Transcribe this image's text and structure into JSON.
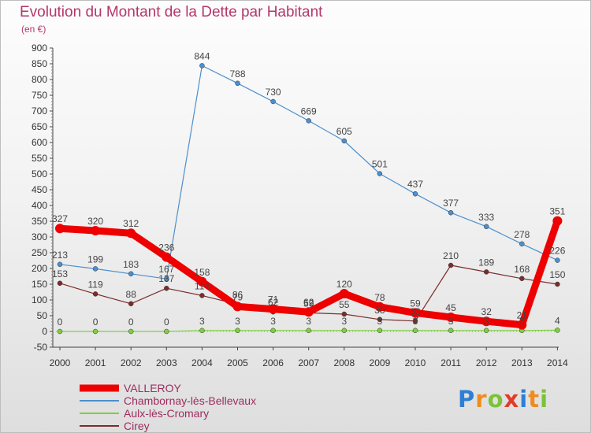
{
  "header": {
    "title": "Evolution du Montant de la Dette par Habitant",
    "subtitle": "(en €)"
  },
  "chart_data": {
    "type": "line",
    "title": "Evolution du Montant de la Dette par Habitant",
    "ylabel": "(en €)",
    "xlabel": "",
    "x": [
      "2000",
      "2001",
      "2002",
      "2003",
      "2004",
      "2005",
      "2006",
      "2007",
      "2008",
      "2009",
      "2010",
      "2011",
      "2012",
      "2013",
      "2014"
    ],
    "ylim": [
      -50,
      900
    ],
    "yticks": [
      -50,
      0,
      50,
      100,
      150,
      200,
      250,
      300,
      350,
      400,
      450,
      500,
      550,
      600,
      650,
      700,
      750,
      800,
      850,
      900
    ],
    "grid": false,
    "legend_position": "bottom-left",
    "series": [
      {
        "name": "VALLEROY",
        "color": "#ee0000",
        "values": [
          327,
          320,
          312,
          236,
          158,
          79,
          71,
          62,
          120,
          78,
          59,
          45,
          32,
          21,
          351
        ]
      },
      {
        "name": "Chambornay-lès-Bellevaux",
        "color": "#4d8fcc",
        "values": [
          213,
          199,
          183,
          167,
          844,
          788,
          730,
          669,
          605,
          501,
          437,
          377,
          333,
          278,
          226
        ]
      },
      {
        "name": "Aulx-lès-Cromary",
        "color": "#7fcf3d",
        "values": [
          0,
          0,
          0,
          0,
          3,
          3,
          3,
          3,
          3,
          3,
          3,
          3,
          3,
          3,
          4
        ]
      },
      {
        "name": "Cirey",
        "color": "#7b2c2c",
        "values": [
          153,
          119,
          88,
          137,
          114,
          86,
          62,
          59,
          55,
          38,
          33,
          210,
          189,
          168,
          150
        ]
      }
    ]
  },
  "logo": {
    "letters": [
      "P",
      "r",
      "o",
      "x",
      "i",
      "t",
      "i"
    ],
    "colors": [
      "#2d7fd4",
      "#f08c1e",
      "#7cc23a",
      "#e23d2a",
      "#2d7fd4",
      "#f08c1e",
      "#7cc23a"
    ]
  }
}
